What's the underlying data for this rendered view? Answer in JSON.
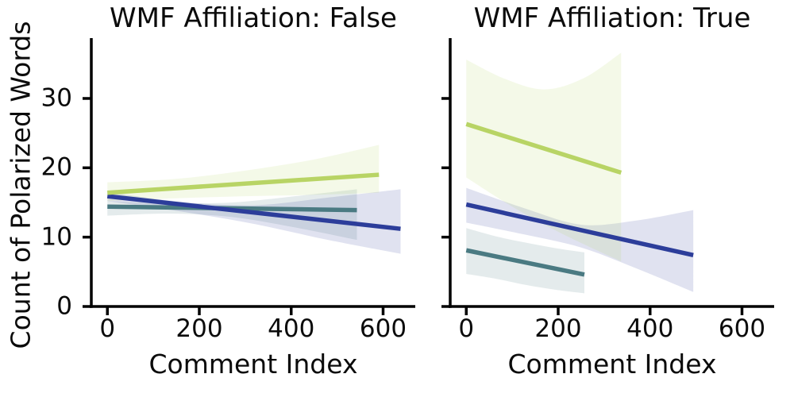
{
  "figure": {
    "ylabel": "Count of Polarized Words",
    "background": "#ffffff",
    "text_color": "#0b0b0b",
    "axis_color": "#000000"
  },
  "style": {
    "band_alpha": 0.15,
    "line_width": 5.5,
    "spine_width": 3.5,
    "tick_length": 11,
    "tick_width": 3.5
  },
  "chart_data": [
    {
      "type": "line",
      "panel": "False",
      "title": "WMF Affiliation: False",
      "xlabel": "Comment Index",
      "xlim": [
        -35,
        670
      ],
      "ylim": [
        0,
        38.7
      ],
      "xticks": [
        0,
        200,
        400,
        600
      ],
      "yticks": [
        0,
        10,
        20,
        30
      ],
      "show_ytick_labels": true,
      "grid": false,
      "legend": null,
      "series": [
        {
          "name": "teal",
          "color": "#4a7a82",
          "x": [
            0,
            136,
            272,
            408,
            543
          ],
          "y": [
            14.4,
            14.3,
            14.2,
            14.0,
            13.9
          ],
          "band_top": [
            15.2,
            14.9,
            15.0,
            15.9,
            16.9
          ],
          "band_bottom": [
            13.1,
            13.4,
            12.9,
            11.4,
            9.6
          ]
        },
        {
          "name": "navy-blue",
          "color": "#2c3d9a",
          "x": [
            0,
            160,
            320,
            480,
            638
          ],
          "y": [
            15.9,
            14.7,
            13.5,
            12.4,
            11.2
          ],
          "band_top": [
            16.5,
            15.1,
            14.6,
            15.7,
            16.9
          ],
          "band_bottom": [
            15.2,
            13.7,
            11.9,
            9.6,
            7.6
          ]
        },
        {
          "name": "yellow-green",
          "color": "#b8d465",
          "x": [
            0,
            150,
            300,
            450,
            591
          ],
          "y": [
            16.4,
            17.1,
            17.7,
            18.4,
            19.0
          ],
          "band_top": [
            17.9,
            18.4,
            19.6,
            21.2,
            23.3
          ],
          "band_bottom": [
            15.2,
            15.6,
            15.9,
            16.1,
            16.4
          ]
        }
      ]
    },
    {
      "type": "line",
      "panel": "True",
      "title": "WMF Affiliation: True",
      "xlabel": "Comment Index",
      "xlim": [
        -35,
        670
      ],
      "ylim": [
        0,
        38.7
      ],
      "xticks": [
        0,
        200,
        400,
        600
      ],
      "yticks": [
        0,
        10,
        20,
        30
      ],
      "show_ytick_labels": false,
      "grid": false,
      "legend": null,
      "series": [
        {
          "name": "teal",
          "color": "#4a7a82",
          "x": [
            0,
            65,
            130,
            195,
            257
          ],
          "y": [
            8.1,
            7.2,
            6.3,
            5.4,
            4.6
          ],
          "band_top": [
            11.3,
            10.1,
            9.2,
            8.4,
            7.8
          ],
          "band_bottom": [
            4.7,
            4.0,
            3.1,
            2.4,
            1.9
          ]
        },
        {
          "name": "navy-blue",
          "color": "#2c3d9a",
          "x": [
            0,
            125,
            250,
            370,
            494
          ],
          "y": [
            14.7,
            12.9,
            11.0,
            9.2,
            7.4
          ],
          "band_top": [
            17.1,
            14.2,
            11.8,
            12.4,
            13.9
          ],
          "band_bottom": [
            12.1,
            10.4,
            8.5,
            5.5,
            2.1
          ]
        },
        {
          "name": "yellow-green",
          "color": "#b8d465",
          "x": [
            0,
            85,
            170,
            255,
            337
          ],
          "y": [
            26.3,
            24.5,
            22.8,
            21.0,
            19.3
          ],
          "band_top": [
            35.6,
            32.8,
            31.3,
            32.9,
            36.6
          ],
          "band_bottom": [
            18.6,
            15.0,
            11.8,
            9.0,
            6.5
          ]
        }
      ]
    }
  ]
}
